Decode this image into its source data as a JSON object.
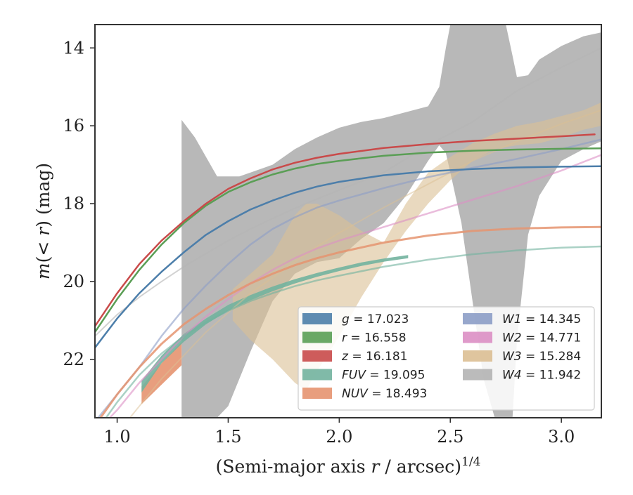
{
  "chart_data": {
    "type": "area",
    "xlabel": "(Semi-major axis r / arcsec)",
    "xlabel_parts": {
      "prefix": "(Semi-major axis ",
      "var": "r",
      "suffix": " / arcsec)",
      "power": "1/4"
    },
    "ylabel": "m(< r) (mag)",
    "ylabel_parts": {
      "m": "m",
      "open": "(",
      "lt": "< ",
      "r": "r",
      "close": ")",
      "unit": " (mag)"
    },
    "xlim": [
      0.9,
      3.18
    ],
    "ylim": [
      23.5,
      13.4
    ],
    "y_inverted": true,
    "grid": false,
    "legend_position": "lower-right",
    "xticks": [
      1.0,
      1.5,
      2.0,
      2.5,
      3.0
    ],
    "xtick_labels": [
      "1.0",
      "1.5",
      "2.0",
      "2.5",
      "3.0"
    ],
    "yticks": [
      14,
      16,
      18,
      20,
      22
    ],
    "ytick_labels": [
      "14",
      "16",
      "18",
      "20",
      "22"
    ],
    "series": [
      {
        "name": "g = 17.023",
        "band": "g",
        "value": "17.023",
        "color": "#4c7eaa",
        "line_width": 2.5,
        "opacity": 1,
        "fill_opacity": 0.9,
        "x": [
          0.9,
          1.0,
          1.1,
          1.2,
          1.3,
          1.4,
          1.5,
          1.6,
          1.7,
          1.8,
          1.9,
          2.0,
          2.2,
          2.4,
          2.6,
          2.8,
          3.0,
          3.18
        ],
        "y": [
          21.7,
          20.95,
          20.3,
          19.75,
          19.25,
          18.8,
          18.45,
          18.15,
          17.92,
          17.72,
          17.56,
          17.44,
          17.27,
          17.17,
          17.11,
          17.07,
          17.05,
          17.04
        ]
      },
      {
        "name": "r = 16.558",
        "band": "r",
        "value": "16.558",
        "color": "#5a9e55",
        "line_width": 2.5,
        "opacity": 1,
        "fill_opacity": 0.9,
        "x": [
          0.9,
          1.0,
          1.1,
          1.2,
          1.3,
          1.4,
          1.5,
          1.6,
          1.7,
          1.8,
          1.9,
          2.0,
          2.2,
          2.4,
          2.6,
          2.8,
          3.0,
          3.18
        ],
        "y": [
          21.3,
          20.45,
          19.7,
          19.05,
          18.5,
          18.05,
          17.7,
          17.45,
          17.25,
          17.1,
          16.98,
          16.9,
          16.77,
          16.69,
          16.64,
          16.61,
          16.59,
          16.58
        ]
      },
      {
        "name": "z = 16.181",
        "band": "z",
        "value": "16.181",
        "color": "#c94a4a",
        "line_width": 2.5,
        "opacity": 1,
        "fill_opacity": 0.9,
        "x": [
          0.9,
          1.0,
          1.1,
          1.2,
          1.3,
          1.4,
          1.5,
          1.6,
          1.7,
          1.8,
          1.9,
          2.0,
          2.2,
          2.4,
          2.6,
          2.8,
          3.0,
          3.15
        ],
        "y": [
          21.15,
          20.3,
          19.55,
          18.95,
          18.45,
          18.0,
          17.62,
          17.35,
          17.12,
          16.95,
          16.82,
          16.72,
          16.57,
          16.47,
          16.39,
          16.33,
          16.27,
          16.22
        ]
      },
      {
        "name": "FUV = 19.095",
        "band": "FUV",
        "value": "19.095",
        "color": "#72b39f",
        "line_width": 2.5,
        "opacity": 0.6,
        "fill_opacity": 0.9,
        "x": [
          0.9,
          1.0,
          1.1,
          1.2,
          1.3,
          1.4,
          1.5,
          1.6,
          1.7,
          1.8,
          1.9,
          2.0,
          2.2,
          2.4,
          2.6,
          2.8,
          3.0,
          3.18
        ],
        "y": [
          23.9,
          23.1,
          22.4,
          21.85,
          21.4,
          21.05,
          20.75,
          20.5,
          20.3,
          20.12,
          19.97,
          19.85,
          19.62,
          19.44,
          19.3,
          19.2,
          19.13,
          19.1
        ],
        "band_x": [
          1.11,
          1.2,
          1.3,
          1.4,
          1.5,
          1.6,
          1.7,
          1.8,
          1.9,
          2.0,
          2.1,
          2.2,
          2.31
        ],
        "band_lo": [
          22.85,
          22.1,
          21.55,
          21.1,
          20.75,
          20.48,
          20.25,
          20.05,
          19.88,
          19.73,
          19.6,
          19.49,
          19.4
        ],
        "band_hi": [
          22.55,
          21.9,
          21.35,
          20.95,
          20.6,
          20.35,
          20.13,
          19.94,
          19.78,
          19.64,
          19.51,
          19.41,
          19.32
        ]
      },
      {
        "name": "NUV = 18.493",
        "band": "NUV",
        "value": "18.493",
        "color": "#e59470",
        "line_width": 3,
        "opacity": 0.85,
        "fill_opacity": 0.9,
        "x": [
          0.9,
          1.0,
          1.1,
          1.2,
          1.3,
          1.4,
          1.5,
          1.6,
          1.7,
          1.8,
          1.9,
          2.0,
          2.2,
          2.4,
          2.6,
          2.8,
          3.0,
          3.18
        ],
        "y": [
          23.7,
          22.9,
          22.2,
          21.6,
          21.1,
          20.7,
          20.35,
          20.05,
          19.8,
          19.58,
          19.4,
          19.25,
          19.0,
          18.82,
          18.7,
          18.64,
          18.61,
          18.6
        ],
        "band_x": [
          1.11,
          1.2,
          1.29
        ],
        "band_lo": [
          23.15,
          22.65,
          22.15
        ],
        "band_hi": [
          22.7,
          22.1,
          21.55
        ]
      },
      {
        "name": "W1 = 14.345",
        "band": "W1",
        "value": "14.345",
        "color": "#8c9dc7",
        "line_width": 2.5,
        "opacity": 0.6,
        "fill_opacity": 0.9,
        "x": [
          0.9,
          1.0,
          1.1,
          1.2,
          1.3,
          1.4,
          1.5,
          1.6,
          1.7,
          1.8,
          1.9,
          2.0,
          2.2,
          2.4,
          2.6,
          2.8,
          3.0,
          3.18
        ],
        "y": [
          23.6,
          22.9,
          22.2,
          21.4,
          20.7,
          20.1,
          19.55,
          19.05,
          18.65,
          18.35,
          18.1,
          17.92,
          17.6,
          17.32,
          17.08,
          16.85,
          16.6,
          16.35
        ]
      },
      {
        "name": "W2 = 14.771",
        "band": "W2",
        "value": "14.771",
        "color": "#dc8fc4",
        "line_width": 2.5,
        "opacity": 0.6,
        "fill_opacity": 0.9,
        "x": [
          0.9,
          1.0,
          1.1,
          1.2,
          1.3,
          1.4,
          1.5,
          1.6,
          1.7,
          1.8,
          1.9,
          2.0,
          2.2,
          2.4,
          2.6,
          2.8,
          3.0,
          3.18
        ],
        "y": [
          23.9,
          23.3,
          22.6,
          22.0,
          21.4,
          20.9,
          20.45,
          20.05,
          19.7,
          19.4,
          19.15,
          18.95,
          18.6,
          18.25,
          17.9,
          17.55,
          17.15,
          16.75
        ]
      },
      {
        "name": "W3 = 15.284",
        "band": "W3",
        "value": "15.284",
        "color": "#dbbf94",
        "line_width": 2,
        "opacity": 0.5,
        "fill_opacity": 0.6,
        "x": [
          0.9,
          1.0,
          1.1,
          1.2,
          1.3,
          1.4,
          1.5,
          1.6,
          1.7,
          1.8,
          1.9,
          2.0,
          2.2,
          2.4,
          2.6,
          2.8,
          3.0,
          3.18
        ],
        "y": [
          24.3,
          23.9,
          23.2,
          22.5,
          21.9,
          21.3,
          20.8,
          20.3,
          19.9,
          19.5,
          19.1,
          18.75,
          18.1,
          17.5,
          16.9,
          16.4,
          15.95,
          15.6
        ],
        "band_x": [
          1.52,
          1.6,
          1.7,
          1.8,
          1.85,
          1.9,
          2.0,
          2.1,
          2.2,
          2.3,
          2.4,
          2.5,
          2.6,
          2.7,
          2.8,
          2.9,
          3.0,
          3.1,
          3.18
        ],
        "band_lo": [
          21.0,
          21.5,
          22.0,
          22.6,
          22.8,
          22.3,
          21.4,
          20.4,
          19.5,
          18.7,
          18.0,
          17.4,
          16.9,
          16.6,
          16.5,
          16.45,
          16.3,
          16.1,
          16.0
        ],
        "band_hi": [
          20.2,
          19.8,
          19.3,
          18.3,
          18.0,
          18.0,
          18.3,
          18.7,
          19.0,
          18.0,
          17.2,
          16.8,
          16.45,
          16.2,
          16.0,
          15.9,
          15.75,
          15.6,
          15.4
        ]
      },
      {
        "name": "W4 = 11.942",
        "band": "W4",
        "value": "11.942",
        "color": "#b4b4b4",
        "line_width": 2,
        "opacity": 0.6,
        "fill_opacity": 0.95,
        "x": [
          0.9,
          1.0,
          1.1,
          1.2,
          1.3,
          1.4,
          1.5,
          1.6,
          1.7,
          1.8,
          1.9,
          2.0,
          2.2,
          2.4,
          2.6,
          2.8,
          3.0,
          3.18
        ],
        "y": [
          21.4,
          20.85,
          20.4,
          20.0,
          19.62,
          19.28,
          18.95,
          18.65,
          18.38,
          18.12,
          17.88,
          17.65,
          17.2,
          16.5,
          15.9,
          15.1,
          14.5,
          14.0
        ],
        "band_x": [
          1.29,
          1.35,
          1.4,
          1.45,
          1.5,
          1.55,
          1.6,
          1.7,
          1.8,
          1.9,
          2.0,
          2.1,
          2.2,
          2.3,
          2.4,
          2.45,
          2.48,
          2.5,
          2.55,
          2.6,
          2.65,
          2.7,
          2.75,
          2.78,
          2.8,
          2.85,
          2.9,
          3.0,
          3.1,
          3.18
        ],
        "band_lo": [
          23.5,
          23.5,
          23.5,
          23.5,
          23.2,
          22.5,
          21.8,
          20.5,
          19.8,
          19.5,
          19.4,
          18.9,
          18.5,
          17.8,
          16.9,
          16.5,
          16.7,
          17.2,
          18.5,
          20.5,
          22.5,
          23.5,
          23.5,
          23.5,
          21.5,
          18.8,
          17.8,
          16.9,
          16.6,
          16.4
        ],
        "band_hi": [
          15.85,
          16.3,
          16.8,
          17.3,
          17.3,
          17.3,
          17.2,
          17.0,
          16.6,
          16.3,
          16.05,
          15.9,
          15.8,
          15.65,
          15.5,
          15.0,
          14.0,
          13.4,
          13.4,
          13.4,
          13.4,
          13.4,
          13.4,
          14.2,
          14.75,
          14.7,
          14.3,
          13.95,
          13.7,
          13.6
        ]
      }
    ],
    "legend_columns": [
      [
        "g",
        "r",
        "z",
        "FUV",
        "NUV"
      ],
      [
        "W1",
        "W2",
        "W3",
        "W4"
      ]
    ]
  }
}
